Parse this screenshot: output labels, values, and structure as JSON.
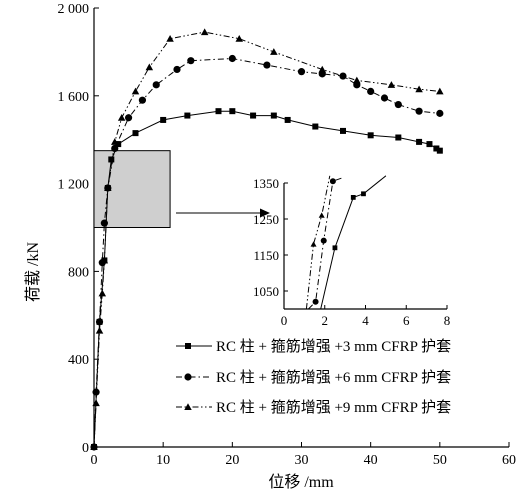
{
  "chart_data": {
    "type": "line",
    "xlabel": "位移 /mm",
    "ylabel": "荷载 /kN",
    "xlim": [
      0,
      60
    ],
    "ylim": [
      0,
      2000
    ],
    "xticks": [
      0,
      10,
      20,
      30,
      40,
      50,
      60
    ],
    "yticks": [
      0,
      400,
      800,
      1200,
      1600,
      2000
    ],
    "yticklabels": [
      "0",
      "400",
      "800",
      "1 200",
      "1 600",
      "2 000"
    ],
    "grid": false,
    "legend_position": "bottom-right",
    "series": [
      {
        "name": "RC 柱 + 箍筋增强 +3 mm CFRP 护套",
        "linestyle": "solid",
        "marker": "square",
        "x": [
          0,
          0.8,
          1.5,
          2.0,
          2.5,
          3.5,
          6,
          10,
          13.5,
          18,
          20,
          23,
          26,
          28,
          32,
          36,
          40,
          44,
          47,
          48.5,
          49.5,
          50
        ],
        "y": [
          0,
          570,
          850,
          1180,
          1310,
          1380,
          1430,
          1490,
          1510,
          1530,
          1530,
          1510,
          1510,
          1490,
          1460,
          1440,
          1420,
          1410,
          1390,
          1380,
          1360,
          1350
        ]
      },
      {
        "name": "RC 柱 + 箍筋增强 +6 mm CFRP 护套",
        "linestyle": "dash-dot",
        "marker": "circle",
        "x": [
          0,
          0.3,
          0.8,
          1.2,
          1.5,
          2.0,
          3,
          5,
          7,
          9,
          12,
          14,
          20,
          25,
          30,
          33,
          36,
          38,
          40,
          42,
          44,
          47,
          50
        ],
        "y": [
          0,
          250,
          570,
          840,
          1020,
          1180,
          1360,
          1500,
          1580,
          1650,
          1720,
          1760,
          1770,
          1740,
          1710,
          1700,
          1690,
          1650,
          1620,
          1590,
          1560,
          1530,
          1520
        ]
      },
      {
        "name": "RC 柱 + 箍筋增强 +9 mm CFRP 护套",
        "linestyle": "dash-dot-dot",
        "marker": "triangle",
        "x": [
          0,
          0.3,
          0.8,
          1.2,
          1.5,
          2.0,
          3,
          4,
          6,
          8,
          11,
          16,
          21,
          26,
          33,
          38,
          43,
          47,
          50
        ],
        "y": [
          0,
          200,
          530,
          700,
          850,
          1180,
          1390,
          1500,
          1620,
          1730,
          1860,
          1890,
          1860,
          1800,
          1720,
          1670,
          1650,
          1630,
          1620
        ]
      }
    ],
    "highlight_box": {
      "x_range": [
        0,
        11
      ],
      "y_range": [
        1000,
        1350
      ]
    },
    "inset": {
      "xlim": [
        0,
        8
      ],
      "ylim": [
        1000,
        1350
      ],
      "xticks": [
        0,
        2,
        4,
        6,
        8
      ],
      "yticks": [
        1050,
        1150,
        1250,
        1350
      ],
      "series": [
        {
          "linestyle": "solid",
          "marker": "square",
          "x": [
            1.8,
            2.5,
            3.4,
            3.9,
            5.0
          ],
          "y": [
            1000,
            1170,
            1310,
            1320,
            1370
          ]
        },
        {
          "linestyle": "dash-dot",
          "marker": "circle",
          "x": [
            1.2,
            1.55,
            1.95,
            2.4,
            2.9
          ],
          "y": [
            1000,
            1020,
            1190,
            1355,
            1365
          ]
        },
        {
          "linestyle": "dash-dot-dot",
          "marker": "triangle",
          "x": [
            1.1,
            1.45,
            1.85,
            2.25
          ],
          "y": [
            1000,
            1180,
            1260,
            1370
          ]
        }
      ]
    }
  }
}
